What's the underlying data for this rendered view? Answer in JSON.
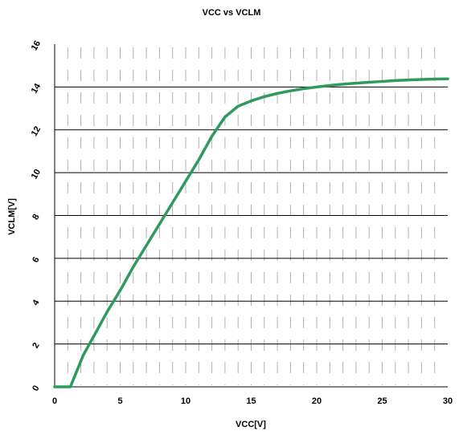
{
  "chart_data": {
    "type": "line",
    "title": "VCC vs VCLM",
    "xlabel": "VCC[V]",
    "ylabel": "VCLM[V]",
    "xlim": [
      0,
      30
    ],
    "ylim": [
      0,
      16
    ],
    "x_ticks": [
      0,
      5,
      10,
      15,
      20,
      25,
      30
    ],
    "y_ticks": [
      0,
      2,
      4,
      6,
      8,
      10,
      12,
      14,
      16
    ],
    "grid": "horizontal major lines with dashed minor vertical lines",
    "line_color": "#2e9a5c",
    "series": [
      {
        "x": [
          0,
          1.2,
          2.2,
          3.2,
          4,
          5,
          6,
          7,
          8,
          9,
          10,
          11,
          12,
          13,
          14,
          15,
          16,
          17,
          18,
          19,
          20,
          21,
          22,
          23,
          24,
          25,
          26,
          27,
          28,
          29,
          30
        ],
        "y": [
          0,
          0,
          1.5,
          2.6,
          3.5,
          4.5,
          5.6,
          6.6,
          7.6,
          8.6,
          9.6,
          10.6,
          11.7,
          12.6,
          13.1,
          13.35,
          13.55,
          13.7,
          13.82,
          13.92,
          14.0,
          14.07,
          14.13,
          14.18,
          14.22,
          14.26,
          14.3,
          14.33,
          14.35,
          14.37,
          14.38
        ]
      }
    ]
  }
}
